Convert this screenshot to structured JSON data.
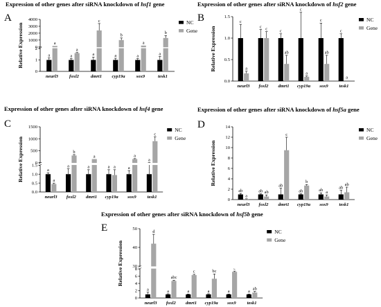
{
  "panels": [
    {
      "label": "A",
      "title_parts": {
        "prefix": "Expression of other genes after siRNA knockdown of ",
        "gene": "hsf1",
        "suffix": " gene"
      },
      "ylabel": "Relative Expression"
    },
    {
      "label": "B",
      "title_parts": {
        "prefix": "Expression of other genes after siRNA knockdown of ",
        "gene": "hsf2",
        "suffix": " gene"
      },
      "ylabel": "Relative Expression"
    },
    {
      "label": "C",
      "title_parts": {
        "prefix": "Expression of other genes after siRNA knockdown of ",
        "gene": "hsf4",
        "suffix": " gene"
      },
      "ylabel": "Relative Expression"
    },
    {
      "label": "D",
      "title_parts": {
        "prefix": "Expression of other genes after siRNA knockdown of ",
        "gene": "hsf5a",
        "suffix": " gene"
      },
      "ylabel": "Relative Expression"
    },
    {
      "label": "E",
      "title_parts": {
        "prefix": "Expression of other genes after siRNA knockdown of ",
        "gene": "hsf5b",
        "suffix": " gene"
      },
      "ylabel": "Relative Expression"
    }
  ],
  "legend": {
    "nc": "NC",
    "gene": "Gene"
  },
  "colors": {
    "nc": "#000000",
    "gene": "#a6a6a6"
  },
  "chart_data": [
    {
      "type": "bar",
      "title": "Expression of other genes after siRNA knockdown of hsf1 gene",
      "categories": [
        "neurl3",
        "foxl2",
        "dmrt1",
        "cyp19a",
        "sox9",
        "tesk1"
      ],
      "ylabel": "Relative Expression",
      "axis": "broken",
      "y_segments": [
        {
          "range": [
            0,
            2
          ],
          "ticks": [
            "0",
            "1",
            "2"
          ]
        },
        {
          "range": [
            0,
            4000
          ],
          "ticks": [
            "0",
            "1000",
            "2000",
            "3000",
            "4000"
          ]
        }
      ],
      "series": [
        {
          "name": "NC",
          "values": [
            1,
            1,
            1,
            1,
            1,
            1
          ],
          "errors": [
            0.18,
            0.12,
            0.25,
            0.15,
            0.12,
            0.3
          ],
          "letters": [
            "a",
            "a",
            "a",
            "a",
            "a",
            "a"
          ]
        },
        {
          "name": "Gene",
          "values": [
            150,
            1.6,
            2400,
            1000,
            200,
            1300
          ],
          "errors": [
            0,
            0.05,
            1000,
            300,
            0,
            350
          ],
          "letters": [
            "a",
            "a",
            "c",
            "b",
            "a",
            "b"
          ]
        }
      ]
    },
    {
      "type": "bar",
      "title": "Expression of other genes after siRNA knockdown of hsf2 gene",
      "categories": [
        "neurl3",
        "foxl2",
        "dmrt1",
        "cyp19a",
        "sox9",
        "tesk1"
      ],
      "ylabel": "Relative Expression",
      "ylim": [
        0,
        1.5
      ],
      "yticks": [
        "0.0",
        "0.5",
        "1.0",
        "1.5"
      ],
      "series": [
        {
          "name": "NC",
          "values": [
            1,
            1,
            1,
            1,
            1,
            1
          ],
          "errors": [
            0.32,
            0.2,
            0.1,
            0.6,
            0.35,
            0.1
          ],
          "letters": [
            "c",
            "c",
            "c",
            "c",
            "c",
            "c"
          ]
        },
        {
          "name": "Gene",
          "values": [
            0.18,
            1,
            0.4,
            0.1,
            0.4,
            0.02
          ],
          "errors": [
            0.05,
            0.15,
            0.2,
            0.02,
            0.2,
            0
          ],
          "letters": [
            "a",
            "c",
            "ab",
            "a",
            "ab",
            "a"
          ]
        }
      ]
    },
    {
      "type": "bar",
      "title": "Expression of other genes after siRNA knockdown of hsf4 gene",
      "categories": [
        "neurl3",
        "foxl2",
        "dmrt1",
        "cyp19a",
        "sox9",
        "tesk1"
      ],
      "ylabel": "Relative Expression",
      "axis": "broken",
      "y_segments": [
        {
          "range": [
            0,
            1.5
          ],
          "ticks": [
            "0.0",
            "0.5",
            "1.0",
            "1.5"
          ]
        },
        {
          "range": [
            0,
            1500
          ],
          "ticks": [
            "0",
            "500",
            "1000",
            "1500"
          ]
        }
      ],
      "series": [
        {
          "name": "NC",
          "values": [
            1,
            1,
            1,
            1,
            1,
            1
          ],
          "errors": [
            0.08,
            0.3,
            0.25,
            0.25,
            0.2,
            0.55
          ],
          "letters": [
            "a",
            "a",
            "a",
            "a",
            "a",
            "a"
          ]
        },
        {
          "name": "Gene",
          "values": [
            0.45,
            300,
            150,
            0.95,
            150,
            900
          ],
          "errors": [
            0.05,
            40,
            0,
            0.3,
            20,
            180
          ],
          "letters": [
            "a",
            "b",
            "a",
            "a",
            "a",
            "c"
          ]
        }
      ]
    },
    {
      "type": "bar",
      "title": "Expression of other genes after siRNA knockdown of hsf5a gene",
      "categories": [
        "neurl3",
        "foxl2",
        "dmrt1",
        "cyp19a",
        "sox9",
        "tesk1"
      ],
      "ylabel": "Relative Expression",
      "ylim": [
        0,
        14
      ],
      "yticks": [
        "0",
        "2",
        "4",
        "6",
        "8",
        "10",
        "12",
        "14"
      ],
      "series": [
        {
          "name": "NC",
          "values": [
            1,
            1,
            1,
            1,
            1,
            1
          ],
          "errors": [
            0.2,
            0.1,
            1.2,
            0.1,
            0.3,
            0.8
          ],
          "letters": [
            "ab",
            "ab",
            "ab",
            "ab",
            "ab",
            "ab"
          ]
        },
        {
          "name": "Gene",
          "values": [
            0.1,
            0.6,
            9.5,
            2.7,
            0.6,
            1.4
          ],
          "errors": [
            0.05,
            0.3,
            2.5,
            0.2,
            0.3,
            1
          ],
          "letters": [
            "a",
            "ab",
            "c",
            "b",
            "a",
            "ab"
          ]
        }
      ]
    },
    {
      "type": "bar",
      "title": "Expression of other genes after siRNA knockdown of hsf5b gene",
      "categories": [
        "neurl3",
        "foxl2",
        "dmrt1",
        "cyp19a",
        "sox9",
        "tesk1"
      ],
      "ylabel": "Relative Expression",
      "axis": "broken",
      "y_segments": [
        {
          "range": [
            0,
            8
          ],
          "ticks": [
            "0",
            "2",
            "4",
            "6",
            "8"
          ]
        },
        {
          "range": [
            30,
            50
          ],
          "ticks": [
            "30",
            "40",
            "50"
          ]
        }
      ],
      "series": [
        {
          "name": "NC",
          "values": [
            1,
            1,
            1,
            1,
            1,
            1
          ],
          "errors": [
            0.6,
            0.15,
            0.1,
            0.15,
            0.1,
            0.1
          ],
          "letters": [
            "a",
            "a",
            "a",
            "a",
            "a",
            "a"
          ]
        },
        {
          "name": "Gene",
          "values": [
            42,
            4.7,
            6.3,
            5.3,
            7.2,
            1.5
          ],
          "errors": [
            5,
            0.2,
            0.2,
            1.3,
            0.2,
            0.3
          ],
          "letters": [
            "d",
            "abc",
            "c",
            "bc",
            "c",
            "ab"
          ]
        }
      ]
    }
  ]
}
